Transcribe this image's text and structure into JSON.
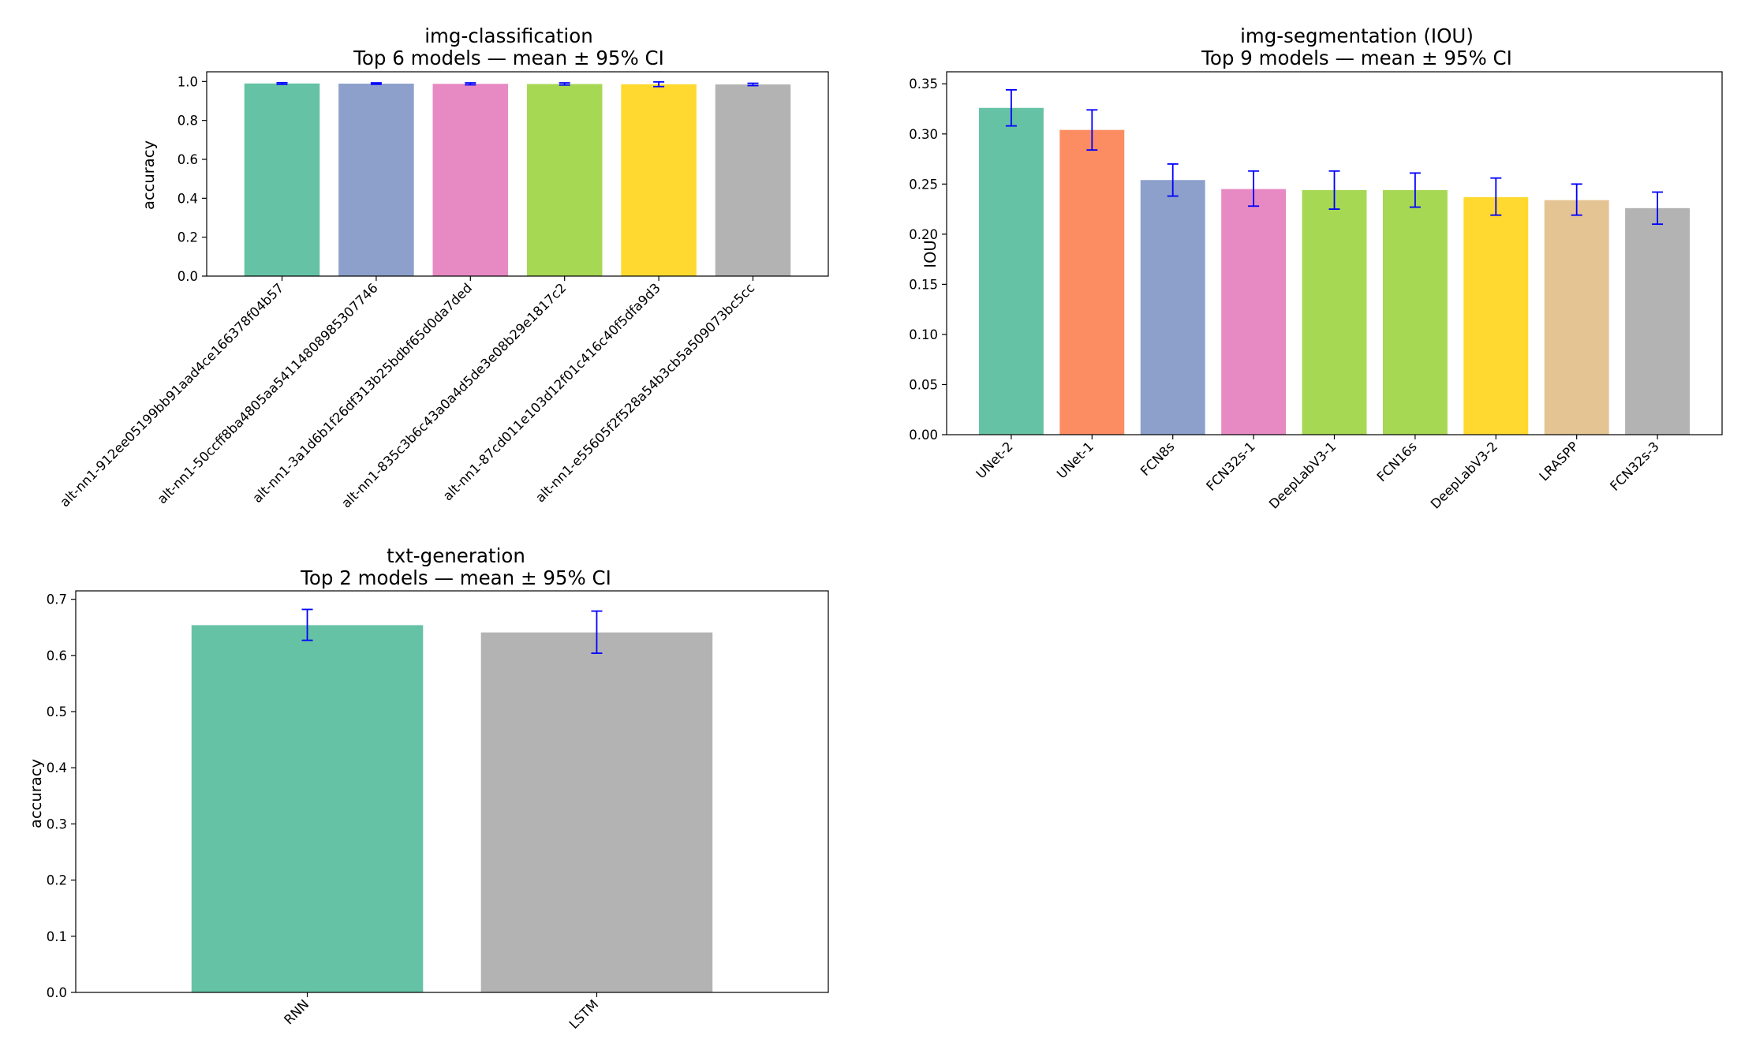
{
  "chart_data": [
    {
      "type": "bar",
      "title": "img-classification",
      "subtitle": "Top 6 models — mean ± 95% CI",
      "xlabel": "",
      "ylabel": "accuracy",
      "ylim": [
        0,
        1.05
      ],
      "yticks": [
        0.0,
        0.2,
        0.4,
        0.6,
        0.8,
        1.0
      ],
      "ytick_format": 1,
      "x_label_rotation": 45,
      "categories": [
        "alt-nn1-912ee05199bb91aad4ce166378f04b57",
        "alt-nn1-50ccff8ba4805aa54114808985307746",
        "alt-nn1-3a1d6b1f26df313b25bdbf65d0da7ded",
        "alt-nn1-835c3b6c43a0a4d5de3e08b29e1817c2",
        "alt-nn1-87cd011e103d12f01c416c40f5dfa9d3",
        "alt-nn1-e55605f2f528a54b3cb5a509073bc5cc"
      ],
      "values": [
        0.99,
        0.989,
        0.988,
        0.987,
        0.986,
        0.985
      ],
      "ci_low": [
        0.986,
        0.986,
        0.983,
        0.982,
        0.974,
        0.979
      ],
      "ci_high": [
        0.994,
        0.993,
        0.993,
        0.993,
        0.998,
        0.991
      ],
      "colors": [
        "#66c2a5",
        "#8da0cb",
        "#e78ac3",
        "#a6d854",
        "#ffd92f",
        "#b3b3b3"
      ],
      "error_color": "#0000ff"
    },
    {
      "type": "bar",
      "title": "img-segmentation (IOU)",
      "subtitle": "Top 9 models — mean ± 95% CI",
      "xlabel": "",
      "ylabel": "IOU",
      "ylim": [
        0,
        0.362
      ],
      "yticks": [
        0.0,
        0.05,
        0.1,
        0.15,
        0.2,
        0.25,
        0.3,
        0.35
      ],
      "ytick_format": 2,
      "x_label_rotation": 45,
      "categories": [
        "UNet-2",
        "UNet-1",
        "FCN8s",
        "FCN32s-1",
        "DeepLabV3-1",
        "FCN16s",
        "DeepLabV3-2",
        "LRASPP",
        "FCN32s-3"
      ],
      "values": [
        0.326,
        0.304,
        0.254,
        0.245,
        0.244,
        0.244,
        0.237,
        0.234,
        0.226
      ],
      "ci_low": [
        0.308,
        0.284,
        0.238,
        0.228,
        0.225,
        0.227,
        0.219,
        0.219,
        0.21
      ],
      "ci_high": [
        0.344,
        0.324,
        0.27,
        0.263,
        0.263,
        0.261,
        0.256,
        0.25,
        0.242
      ],
      "colors": [
        "#66c2a5",
        "#fc8d62",
        "#8da0cb",
        "#e78ac3",
        "#a6d854",
        "#a6d854",
        "#ffd92f",
        "#e5c494",
        "#b3b3b3"
      ],
      "error_color": "#0000ff"
    },
    {
      "type": "bar",
      "title": "txt-generation",
      "subtitle": "Top 2 models — mean ± 95% CI",
      "xlabel": "",
      "ylabel": "accuracy",
      "ylim": [
        0,
        0.715
      ],
      "yticks": [
        0.0,
        0.1,
        0.2,
        0.3,
        0.4,
        0.5,
        0.6,
        0.7
      ],
      "ytick_format": 1,
      "x_label_rotation": 45,
      "categories": [
        "RNN",
        "LSTM"
      ],
      "values": [
        0.654,
        0.641
      ],
      "ci_low": [
        0.627,
        0.604
      ],
      "ci_high": [
        0.682,
        0.679
      ],
      "colors": [
        "#66c2a5",
        "#b3b3b3"
      ],
      "error_color": "#0000ff"
    }
  ]
}
